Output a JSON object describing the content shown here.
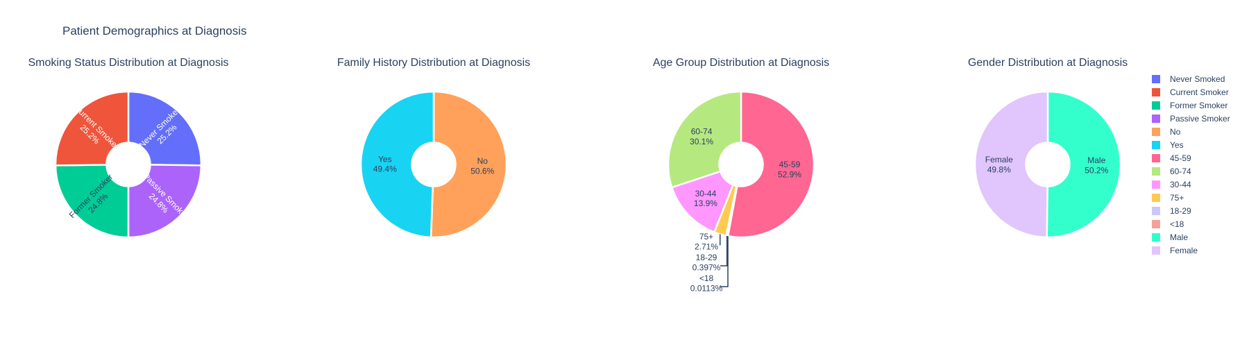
{
  "title": "Patient Demographics at Diagnosis",
  "chart_data": [
    {
      "type": "pie",
      "title": "Smoking Status Distribution at Diagnosis",
      "hole": 0.3,
      "labels": [
        "Never Smoked",
        "Current Smoker",
        "Former Smoker",
        "Passive Smoker"
      ],
      "values": [
        25.2,
        25.2,
        24.8,
        24.8
      ],
      "percent_text": [
        "25.2%",
        "25.2%",
        "24.8%",
        "24.8%"
      ],
      "slice_order": [
        0,
        3,
        2,
        1
      ],
      "colors": [
        "#636efa",
        "#ef553b",
        "#00cc96",
        "#ab63fa"
      ],
      "text_colors": [
        "#ffffff",
        "#ffffff",
        "#2a3f5f",
        "#ffffff"
      ],
      "label_orientation": "radial"
    },
    {
      "type": "pie",
      "title": "Family History Distribution at Diagnosis",
      "hole": 0.3,
      "labels": [
        "No",
        "Yes"
      ],
      "values": [
        50.6,
        49.4
      ],
      "percent_text": [
        "50.6%",
        "49.4%"
      ],
      "slice_order": [
        0,
        1
      ],
      "colors": [
        "#ffa15a",
        "#19d3f3"
      ],
      "text_colors": [
        "#2a3f5f",
        "#2a3f5f"
      ],
      "label_orientation": "horizontal"
    },
    {
      "type": "pie",
      "title": "Age Group Distribution at Diagnosis",
      "hole": 0.3,
      "labels": [
        "45-59",
        "60-74",
        "30-44",
        "75+",
        "18-29",
        "<18"
      ],
      "values": [
        52.9,
        30.1,
        13.9,
        2.71,
        0.397,
        0.0113
      ],
      "percent_text": [
        "52.9%",
        "30.1%",
        "13.9%",
        "2.71%",
        "0.397%",
        "0.0113%"
      ],
      "slice_order": [
        0,
        5,
        4,
        3,
        2,
        1
      ],
      "colors": [
        "#ff6692",
        "#b6e880",
        "#ff97ff",
        "#fecb52",
        "#c8c8fa",
        "#f2a29a"
      ],
      "text_colors": [
        "#2a3f5f",
        "#2a3f5f",
        "#2a3f5f",
        "#2a3f5f",
        "#2a3f5f",
        "#2a3f5f"
      ],
      "label_orientation": "horizontal",
      "outside_labels": [
        3,
        4,
        5
      ]
    },
    {
      "type": "pie",
      "title": "Gender Distribution at Diagnosis",
      "hole": 0.3,
      "labels": [
        "Male",
        "Female"
      ],
      "values": [
        50.2,
        49.8
      ],
      "percent_text": [
        "50.2%",
        "49.8%"
      ],
      "slice_order": [
        0,
        1
      ],
      "colors": [
        "#33ffcc",
        "#e0c6fc"
      ],
      "text_colors": [
        "#2a3f5f",
        "#2a3f5f"
      ],
      "label_orientation": "horizontal"
    }
  ],
  "legend": {
    "placement": "right",
    "items": [
      {
        "label": "Never Smoked",
        "color": "#636efa"
      },
      {
        "label": "Current Smoker",
        "color": "#ef553b"
      },
      {
        "label": "Former Smoker",
        "color": "#00cc96"
      },
      {
        "label": "Passive Smoker",
        "color": "#ab63fa"
      },
      {
        "label": "No",
        "color": "#ffa15a"
      },
      {
        "label": "Yes",
        "color": "#19d3f3"
      },
      {
        "label": "45-59",
        "color": "#ff6692"
      },
      {
        "label": "60-74",
        "color": "#b6e880"
      },
      {
        "label": "30-44",
        "color": "#ff97ff"
      },
      {
        "label": "75+",
        "color": "#fecb52"
      },
      {
        "label": "18-29",
        "color": "#c8c8fa"
      },
      {
        "label": "<18",
        "color": "#f2a29a"
      },
      {
        "label": "Male",
        "color": "#33ffcc"
      },
      {
        "label": "Female",
        "color": "#e0c6fc"
      }
    ]
  }
}
